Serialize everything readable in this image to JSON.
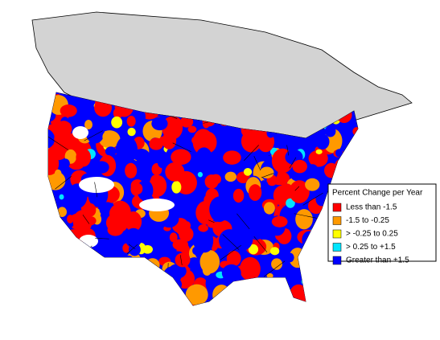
{
  "legend": {
    "title": "Percent Change per Year",
    "items": [
      {
        "label": "Less than -1.5",
        "color": "#ff0000"
      },
      {
        "label": "-1.5 to -0.25",
        "color": "#ff9900"
      },
      {
        "label": "> -0.25 to 0.25",
        "color": "#ffff00"
      },
      {
        "label": "> 0.25 to +1.5",
        "color": "#00e5ff"
      },
      {
        "label": "Greater than +1.5",
        "color": "#0000ff"
      }
    ]
  }
}
